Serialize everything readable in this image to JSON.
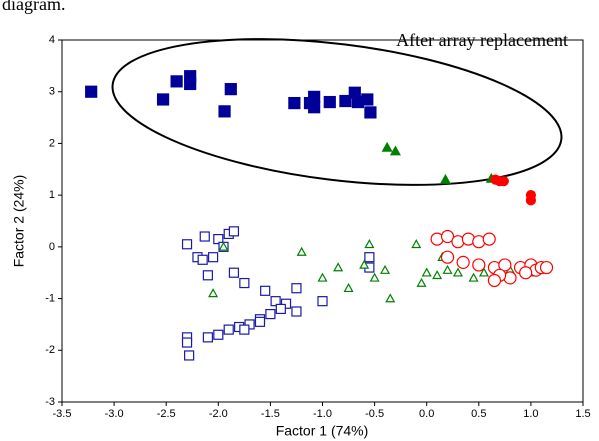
{
  "caption": "diagram.",
  "chart_data": {
    "type": "scatter",
    "xlabel": "Factor 1 (74%)",
    "ylabel": "Factor 2 (24%)",
    "annotation": "After array replacement",
    "xlim": [
      -3.5,
      1.5
    ],
    "xticks": [
      -3.5,
      {
        "value": -3,
        "label": "-3.0"
      },
      -2.5,
      {
        "value": -2,
        "label": "-2.0"
      },
      -1.5,
      {
        "value": -1,
        "label": "-1.0"
      },
      -0.5,
      {
        "value": 0,
        "label": "0.0"
      },
      0.5,
      {
        "value": 1,
        "label": "1.0"
      },
      1.5
    ],
    "ylim": [
      -3,
      4
    ],
    "yticks": [
      -3,
      -2,
      -1,
      0,
      1,
      2,
      3,
      4
    ],
    "series": [
      {
        "marker": "square",
        "filled": true,
        "color": "#000099",
        "x": [
          -3.22,
          -2.53,
          -2.4,
          -2.27,
          -2.27,
          -1.88,
          -1.94,
          -1.27,
          -1.12,
          -1.08,
          -1.08,
          -0.93,
          -0.78,
          -0.69,
          -0.66,
          -0.57,
          -0.54
        ],
        "values": [
          3.0,
          2.85,
          3.2,
          3.3,
          3.15,
          3.05,
          2.62,
          2.78,
          2.78,
          2.9,
          2.7,
          2.8,
          2.82,
          2.98,
          2.8,
          2.85,
          2.6
        ]
      },
      {
        "marker": "triangle",
        "filled": true,
        "color": "#008000",
        "x": [
          -0.38,
          -0.3,
          0.18,
          0.62
        ],
        "values": [
          1.92,
          1.85,
          1.3,
          1.32
        ]
      },
      {
        "marker": "circle",
        "filled": true,
        "color": "#ff0000",
        "x": [
          0.66,
          0.7,
          0.74,
          1.0,
          1.0
        ],
        "values": [
          1.3,
          1.27,
          1.27,
          1.0,
          0.9
        ]
      },
      {
        "marker": "square",
        "filled": false,
        "color": "#1a1aa6",
        "x": [
          -2.3,
          -2.13,
          -2.0,
          -1.9,
          -1.85,
          -2.2,
          -2.15,
          -2.05,
          -1.95,
          -2.1,
          -1.85,
          -1.75,
          -1.55,
          -1.45,
          -1.35,
          -1.25,
          -1.25,
          -1.0,
          -0.55,
          -0.55,
          -1.5,
          -1.6,
          -1.7,
          -1.8,
          -1.9,
          -2.0,
          -2.1,
          -2.3,
          -2.28,
          -2.3,
          -1.75,
          -1.6,
          -1.4
        ],
        "values": [
          0.05,
          0.2,
          0.15,
          0.25,
          0.3,
          -0.2,
          -0.25,
          -0.2,
          0.0,
          -0.55,
          -0.5,
          -0.7,
          -0.85,
          -1.05,
          -1.1,
          -1.25,
          -0.8,
          -1.05,
          -0.4,
          -0.2,
          -1.3,
          -1.4,
          -1.5,
          -1.55,
          -1.6,
          -1.7,
          -1.75,
          -1.75,
          -2.1,
          -1.85,
          -1.6,
          -1.45,
          -1.2
        ]
      },
      {
        "marker": "triangle",
        "filled": false,
        "color": "#008000",
        "x": [
          -2.05,
          -1.95,
          -1.2,
          -1.0,
          -0.85,
          -0.75,
          -0.6,
          -0.55,
          -0.5,
          -0.4,
          -0.35,
          -0.1,
          -0.05,
          0.0,
          0.1,
          0.15,
          0.2,
          0.3,
          0.35,
          0.45,
          0.55,
          0.7,
          0.8,
          1.0
        ],
        "values": [
          -0.9,
          0.0,
          -0.1,
          -0.6,
          -0.4,
          -0.8,
          -0.35,
          0.05,
          -0.6,
          -0.45,
          -1.0,
          0.05,
          -0.7,
          -0.5,
          -0.55,
          -0.2,
          -0.45,
          -0.5,
          -0.3,
          -0.6,
          -0.5,
          -0.4,
          -0.45,
          -0.5
        ]
      },
      {
        "marker": "circle",
        "filled": false,
        "color": "#ff0000",
        "x": [
          0.1,
          0.2,
          0.3,
          0.4,
          0.5,
          0.6,
          0.2,
          0.35,
          0.5,
          0.65,
          0.75,
          0.8,
          0.9,
          1.0,
          1.05,
          1.1,
          1.15,
          0.7,
          0.65,
          0.95
        ],
        "values": [
          0.15,
          0.2,
          0.1,
          0.15,
          0.1,
          0.15,
          -0.2,
          -0.3,
          -0.35,
          -0.4,
          -0.35,
          -0.6,
          -0.4,
          -0.35,
          -0.45,
          -0.4,
          -0.4,
          -0.55,
          -0.65,
          -0.5
        ]
      }
    ]
  }
}
